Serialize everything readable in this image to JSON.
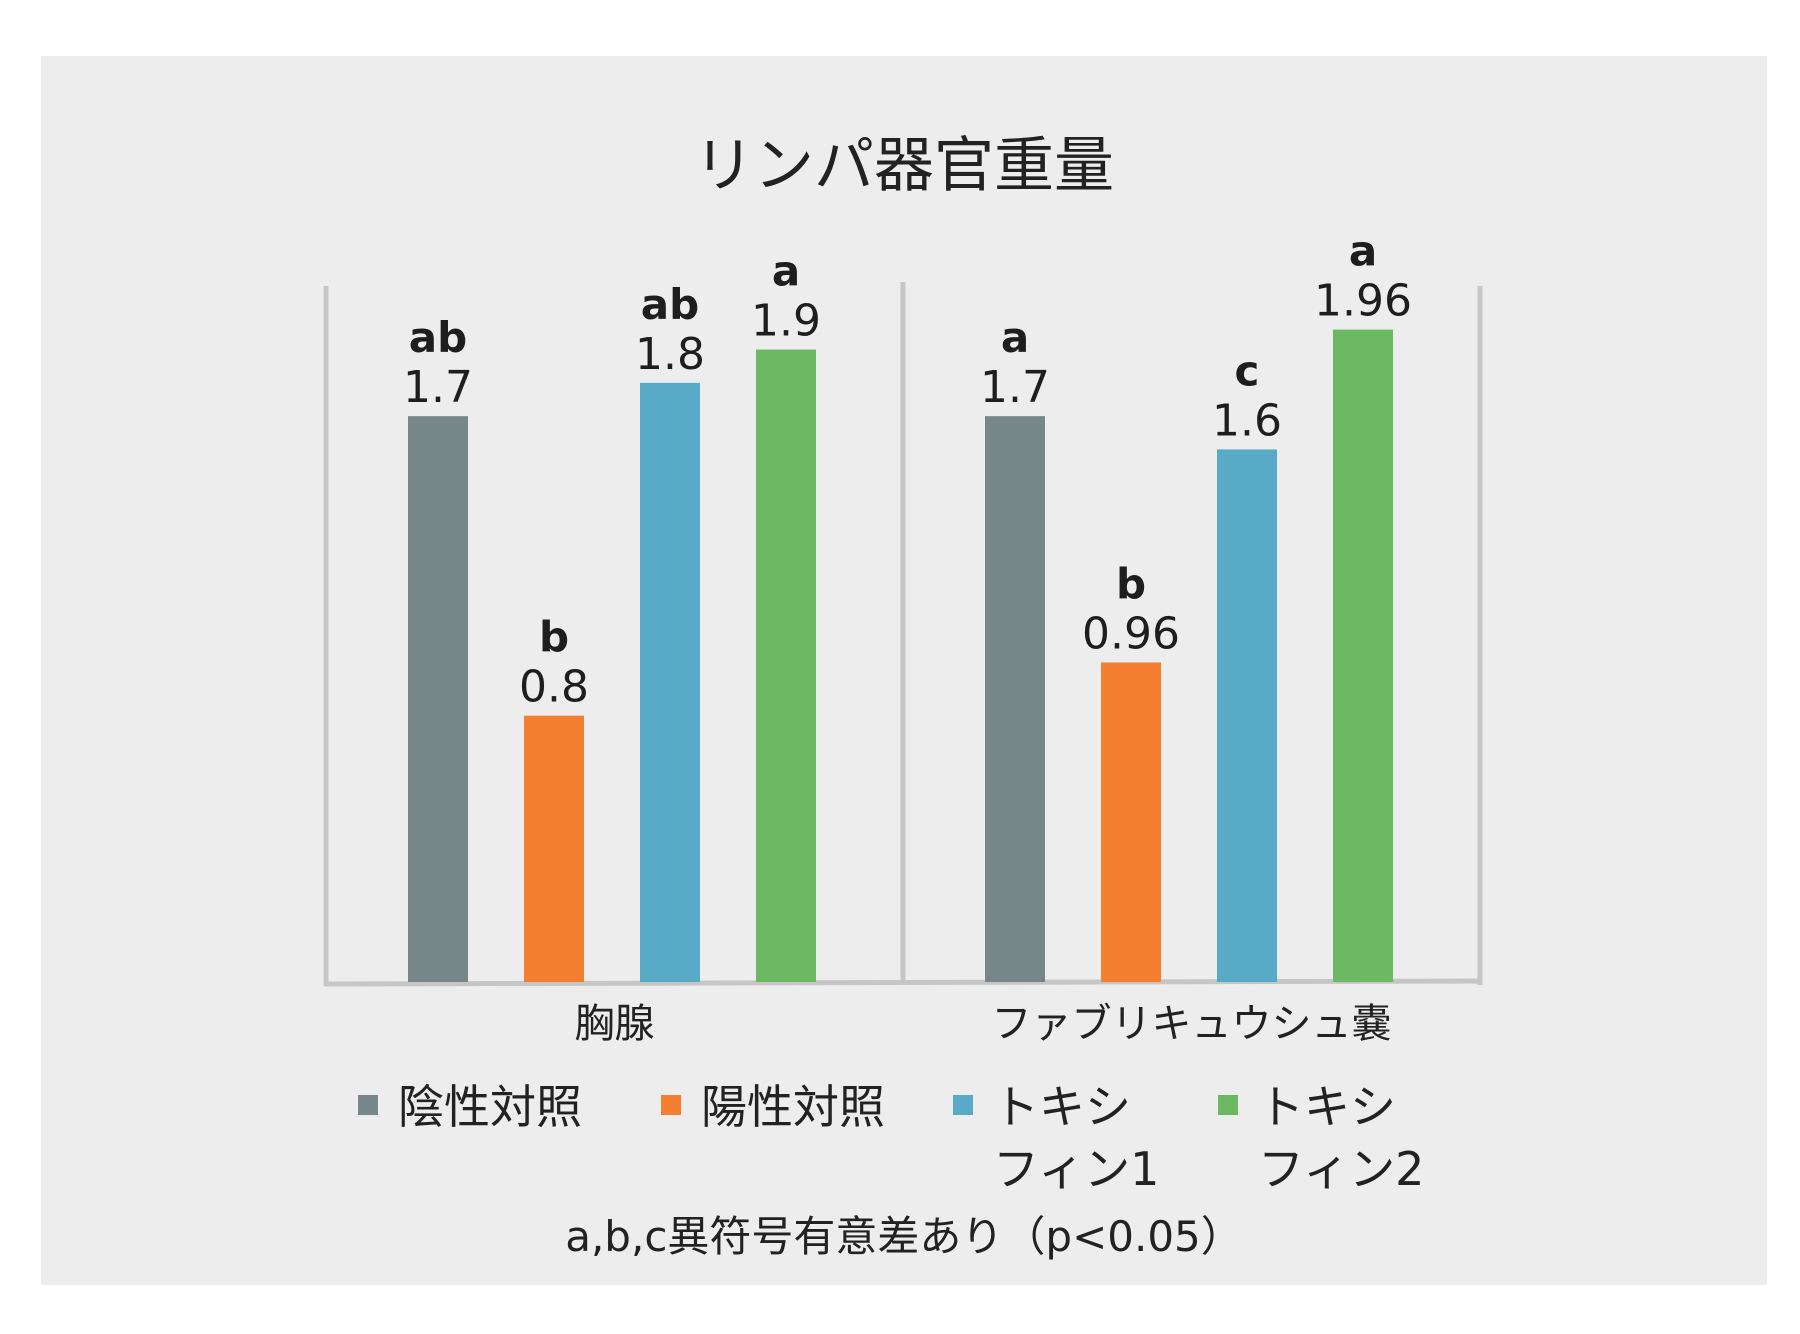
{
  "chart_data": {
    "type": "bar",
    "title": "リンパ器官重量",
    "categories": [
      "胸腺",
      "ファブリキュウシュ嚢"
    ],
    "series": [
      {
        "name": "陰性対照",
        "color": "#778789",
        "values": [
          1.7,
          1.7
        ],
        "value_labels": [
          "1.7",
          "1.7"
        ],
        "sig": [
          "ab",
          "a"
        ]
      },
      {
        "name": "陽性対照",
        "color": "#f47f30",
        "values": [
          0.8,
          0.96
        ],
        "value_labels": [
          "0.8",
          "0.96"
        ],
        "sig": [
          "b",
          "b"
        ]
      },
      {
        "name": "トキシフィン1",
        "legend_lines": [
          "トキシ",
          "フィン1"
        ],
        "color": "#58aac6",
        "values": [
          1.8,
          1.6
        ],
        "value_labels": [
          "1.8",
          "1.6"
        ],
        "sig": [
          "ab",
          "c"
        ]
      },
      {
        "name": "トキシフィン2",
        "legend_lines": [
          "トキシ",
          "フィン2"
        ],
        "color": "#6cb964",
        "values": [
          1.9,
          1.96
        ],
        "value_labels": [
          "1.9",
          "1.96"
        ],
        "sig": [
          "a",
          "a"
        ]
      }
    ],
    "ylim": [
      0,
      2.1
    ],
    "grid": false,
    "legend_position": "bottom",
    "note": "a,b,c異符号有意差あり（p<0.05）"
  }
}
